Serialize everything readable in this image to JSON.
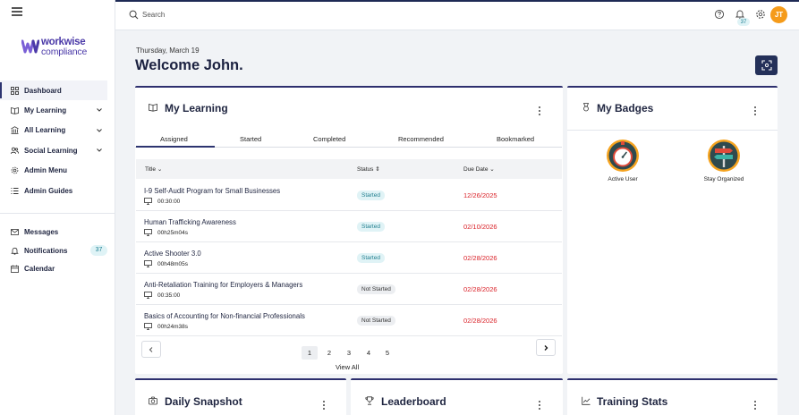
{
  "app": {
    "logo_line1": "workwise",
    "logo_line2": "compliance"
  },
  "sidebar": {
    "items": [
      {
        "label": "Dashboard",
        "icon": "grid-icon"
      },
      {
        "label": "My Learning",
        "icon": "book-icon"
      },
      {
        "label": "All Learning",
        "icon": "building-icon"
      },
      {
        "label": "Social Learning",
        "icon": "users-icon"
      },
      {
        "label": "Admin Menu",
        "icon": "gear-icon"
      },
      {
        "label": "Admin Guides",
        "icon": "list-icon"
      }
    ],
    "secondary": [
      {
        "label": "Messages",
        "icon": "mail-icon"
      },
      {
        "label": "Notifications",
        "icon": "bell-icon",
        "count": "37"
      },
      {
        "label": "Calendar",
        "icon": "calendar-icon"
      }
    ]
  },
  "header": {
    "search_placeholder": "Search",
    "notification_count": "37",
    "avatar_initials": "JT"
  },
  "page": {
    "date": "Thursday, March 19",
    "welcome": "Welcome John."
  },
  "learning": {
    "title": "My Learning",
    "tabs": [
      "Assigned",
      "Started",
      "Completed",
      "Recommended",
      "Bookmarked"
    ],
    "active_tab": "Assigned",
    "columns": {
      "title": "Title",
      "status": "Status",
      "due": "Due Date"
    },
    "rows": [
      {
        "title": "I-9 Self-Audit Program for Small Businesses",
        "duration": "00:30:00",
        "status": "Started",
        "due": "12/26/2025"
      },
      {
        "title": "Human Trafficking Awareness",
        "duration": "00h25m04s",
        "status": "Started",
        "due": "02/10/2026"
      },
      {
        "title": "Active Shooter 3.0",
        "duration": "00h48m05s",
        "status": "Started",
        "due": "02/28/2026"
      },
      {
        "title": "Anti-Retaliation Training for Employers & Managers",
        "duration": "00:35:00",
        "status": "Not Started",
        "due": "02/28/2026"
      },
      {
        "title": "Basics of Accounting for Non-financial Professionals",
        "duration": "00h24m38s",
        "status": "Not Started",
        "due": "02/28/2026"
      }
    ],
    "pages": [
      "1",
      "2",
      "3",
      "4",
      "5"
    ],
    "current_page": "1",
    "view_all": "View All"
  },
  "badges": {
    "title": "My Badges",
    "items": [
      {
        "label": "Active User",
        "icon": "stopwatch-icon"
      },
      {
        "label": "Stay Organized",
        "icon": "signpost-icon"
      }
    ]
  },
  "bottom_cards": {
    "snapshot": "Daily Snapshot",
    "leaderboard": "Leaderboard",
    "training_stats": "Training Stats"
  },
  "colors": {
    "brand": "#4b3aa8",
    "accent": "#243059",
    "due": "#d91f26",
    "avatar": "#f59b1a"
  }
}
